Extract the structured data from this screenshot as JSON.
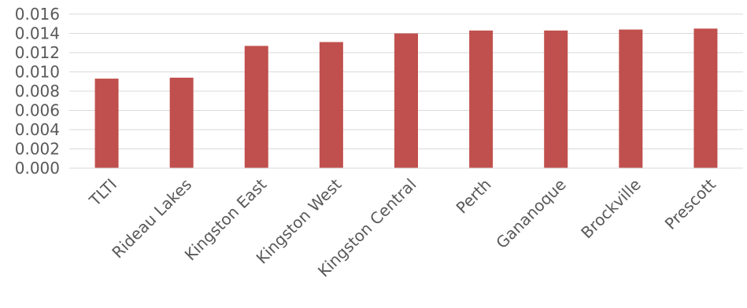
{
  "chart_data": {
    "type": "bar",
    "categories": [
      "TLTI",
      "Rideau Lakes",
      "Kingston East",
      "Kingston West",
      "Kingston Central",
      "Perth",
      "Gananoque",
      "Brockville",
      "Prescott"
    ],
    "values": [
      0.0093,
      0.0094,
      0.0127,
      0.0131,
      0.014,
      0.0143,
      0.0143,
      0.0144,
      0.0145
    ],
    "yticks": [
      "0.000",
      "0.002",
      "0.004",
      "0.006",
      "0.008",
      "0.010",
      "0.012",
      "0.014",
      "0.016"
    ],
    "ylim": [
      0,
      0.016
    ],
    "grid": true,
    "bar_color": "#c0504d",
    "grid_color": "#d9d9d9",
    "title": "",
    "xlabel": "",
    "ylabel": ""
  }
}
